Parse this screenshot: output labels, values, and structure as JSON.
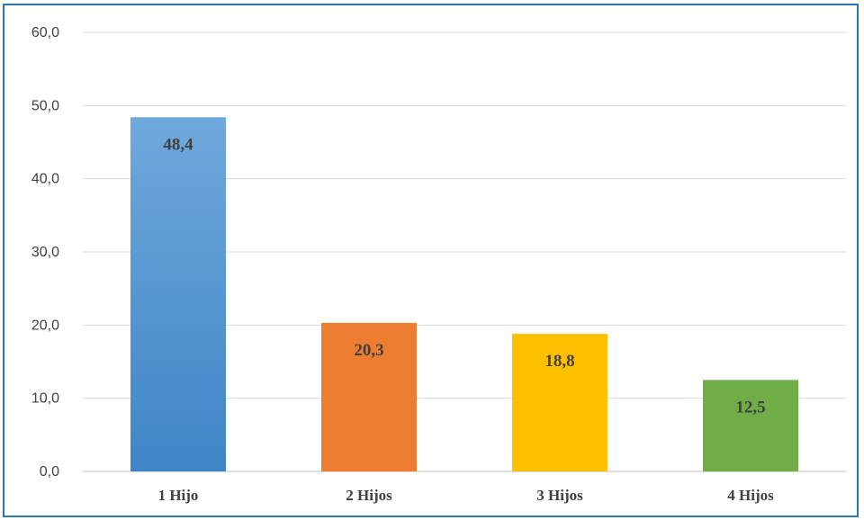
{
  "chart_data": {
    "type": "bar",
    "categories": [
      "1 Hijo",
      "2 Hijos",
      "3 Hijos",
      "4 Hijos"
    ],
    "values": [
      48.4,
      20.3,
      18.8,
      12.5
    ],
    "data_labels": [
      "48,4",
      "20,3",
      "18,8",
      "12,5"
    ],
    "title": "",
    "xlabel": "",
    "ylabel": "",
    "ylim": [
      0,
      60
    ],
    "y_ticks": [
      "0,0",
      "10,0",
      "20,0",
      "30,0",
      "40,0",
      "50,0",
      "60,0"
    ],
    "grid": true,
    "legend": "none",
    "colors": [
      "#5b9bd5",
      "#ed7d31",
      "#ffc000",
      "#70ad47"
    ],
    "gradient_top": [
      "#6fa8dc",
      "#ed7d31",
      "#ffc000",
      "#70ad47"
    ],
    "gradient_bottom": [
      "#3f85c6",
      "#ed7d31",
      "#ffc000",
      "#70ad47"
    ],
    "border_color": "#2e75b6"
  }
}
